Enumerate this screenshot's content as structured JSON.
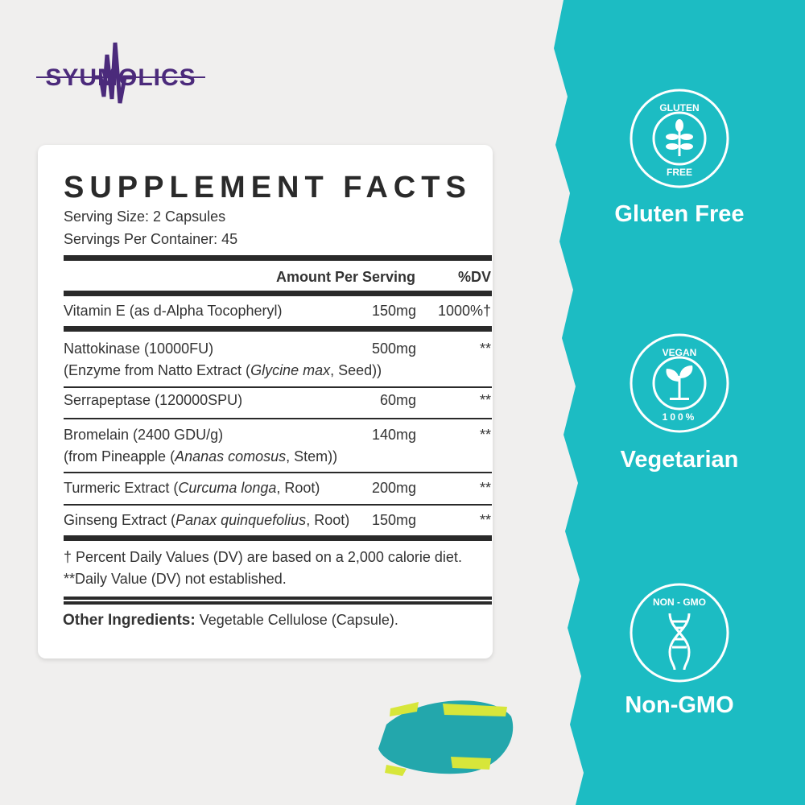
{
  "brand": {
    "logo_text": "SYUMOLICS",
    "color": "#4b2a7b"
  },
  "colors": {
    "teal": "#1cbcc3",
    "background": "#f0efee"
  },
  "facts": {
    "title": "SUPPLEMENT FACTS",
    "serving_size": "Serving Size: 2 Capsules",
    "servings_per_container": "Servings Per Container: 45",
    "header_amount": "Amount Per Serving",
    "header_dv": "%DV",
    "rows": [
      {
        "name": "Vitamin E (as d-Alpha Tocopheryl)",
        "amount": "150mg",
        "dv": "1000%†"
      },
      {
        "name": "Nattokinase (10000FU)",
        "sub_pre": "(Enzyme from Natto Extract (",
        "sub_italic": "Glycine max",
        "sub_post": ", Seed))",
        "amount": "500mg",
        "dv": "**"
      },
      {
        "name": "Serrapeptase (120000SPU)",
        "amount": "60mg",
        "dv": "**"
      },
      {
        "name": "Bromelain (2400 GDU/g)",
        "sub_pre": "(from Pineapple (",
        "sub_italic": "Ananas comosus",
        "sub_post": ", Stem))",
        "amount": "140mg",
        "dv": "**"
      },
      {
        "name_pre": "Turmeric Extract (",
        "name_italic": "Curcuma longa",
        "name_post": ", Root)",
        "amount": "200mg",
        "dv": "**"
      },
      {
        "name_pre": "Ginseng Extract (",
        "name_italic": "Panax quinquefolius",
        "name_post": ", Root)",
        "amount": "150mg",
        "dv": "**"
      }
    ],
    "footnote1": "† Percent Daily Values (DV) are based on a 2,000 calorie diet.",
    "footnote2": "**Daily Value (DV) not established.",
    "other_label": "Other Ingredients:",
    "other_value": " Vegetable Cellulose (Capsule)."
  },
  "badges": [
    {
      "icon": "wheat-icon",
      "top_text": "GLUTEN",
      "bottom_text": "FREE",
      "label": "Gluten Free"
    },
    {
      "icon": "sprout-icon",
      "top_text": "VEGAN",
      "bottom_text": "100%",
      "label": "Vegetarian"
    },
    {
      "icon": "dna-icon",
      "top_text": "NON - GMO",
      "bottom_text": "",
      "label": "Non-GMO"
    }
  ]
}
